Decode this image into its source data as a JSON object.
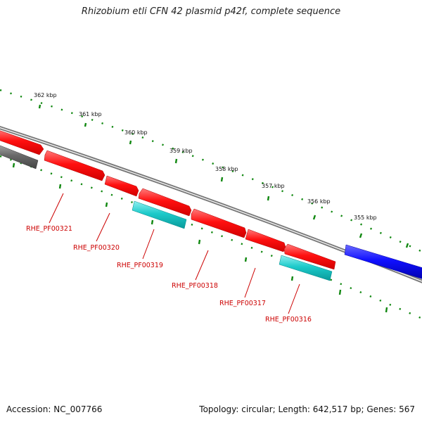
{
  "title": "Rhizobium etli CFN 42 plasmid p42f, complete sequence",
  "footer": {
    "accession": "Accession: NC_007766",
    "summary": "Topology: circular; Length: 642,517 bp; Genes: 567"
  },
  "colors": {
    "plus_strand_gene": "#ff0000",
    "minus_strand_gene": "#00c8c8",
    "other_feature": "#0000ff",
    "grey_feature": "#666666",
    "backbone": "#888888",
    "tick": "#118811",
    "label": "#cc0000"
  },
  "scale_labels": [
    "362 kbp",
    "361 kbp",
    "360 kbp",
    "359 kbp",
    "358 kbp",
    "357 kbp",
    "356 kbp",
    "355 kbp"
  ],
  "gene_labels": [
    "RHE_PF00321",
    "RHE_PF00320",
    "RHE_PF00319",
    "RHE_PF00318",
    "RHE_PF00317",
    "RHE_PF00316"
  ]
}
